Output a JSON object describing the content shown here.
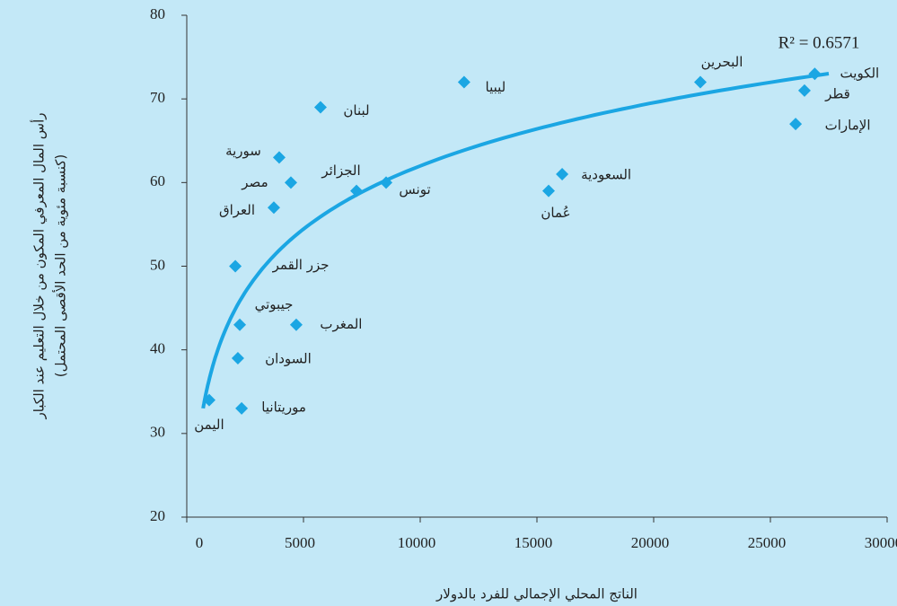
{
  "chart_data": {
    "type": "scatter",
    "xlabel": "الناتج المحلي الإجمالي للفرد بالدولار",
    "ylabel": [
      "رأس المال المعرفي المكون من خلال التعليم عند الكبار",
      "(كنسبة مئوية من الحد الأقصى المحتمل)"
    ],
    "annotation": "R² = 0.6571",
    "series": [
      {
        "color": "#1ba6e3",
        "labels": [
          "الكويت",
          "قطر",
          "الإمارات",
          "البحرين",
          "ليبيا",
          "السعودية",
          "عُمان",
          "تونس",
          "الجزائر",
          "لبنان",
          "سورية",
          "مصر",
          "العراق",
          "جزر القمر",
          "جيبوتي",
          "المغرب",
          "السودان",
          "موريتانيا",
          "اليمن"
        ],
        "x": [
          26900,
          26460,
          26080,
          22000,
          11880,
          16080,
          15500,
          8540,
          7270,
          5730,
          3960,
          4460,
          3730,
          2080,
          2270,
          4690,
          2190,
          2350,
          960
        ],
        "values": [
          73,
          71,
          67,
          72,
          72,
          61,
          59,
          60,
          59,
          69,
          63,
          60,
          57,
          50,
          43,
          43,
          39,
          33,
          34
        ]
      }
    ],
    "trendline": {
      "type": "log",
      "a": 10.9,
      "b": -38.4,
      "xrange": [
        700,
        27500
      ],
      "color": "#1ba6e3"
    },
    "xlim": [
      0,
      30000
    ],
    "xticks": [
      0,
      5000,
      10000,
      15000,
      20000,
      25000,
      30000
    ],
    "ylim": [
      20,
      80
    ],
    "yticks": [
      20,
      30,
      40,
      50,
      60,
      70,
      80
    ]
  }
}
